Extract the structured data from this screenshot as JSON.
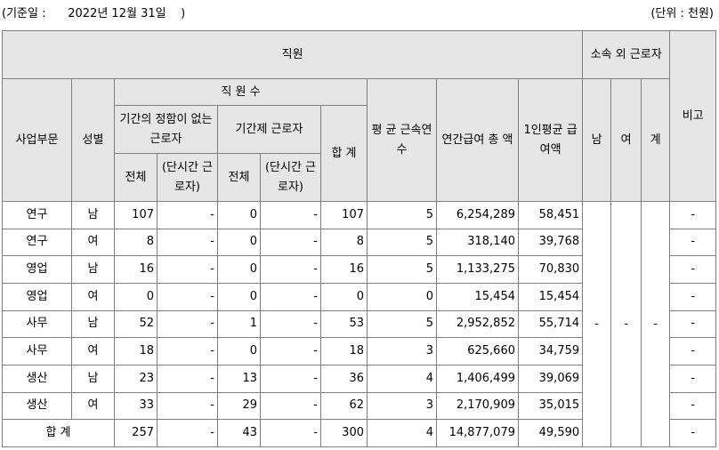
{
  "header": {
    "base_date": "(기준일 :      2022년 12월 31일    )",
    "unit": "(단위 : 천원)"
  },
  "table": {
    "h_employees": "직원",
    "h_outside": "소속 외 근로자",
    "h_remark": "비고",
    "h_division": "사업부문",
    "h_gender": "성별",
    "h_count": "직 원 수",
    "h_regular": "기간의 정함이 없는 근로자",
    "h_contract": "기간제 근로자",
    "h_total_sum": "합 계",
    "h_avg_tenure": "평 균 근속연수",
    "h_annual_pay": "연간급여 총 액",
    "h_per_capita": "1인평균 급여액",
    "h_male": "남",
    "h_female": "여",
    "h_outside_total": "계",
    "h_all1": "전체",
    "h_part1": "(단시간 근로자)",
    "h_all2": "전체",
    "h_part2": "(단시간 근로자)",
    "rows": [
      {
        "division": "연구",
        "gender": "남",
        "regular": "107",
        "regular_part": "-",
        "contract": "0",
        "contract_part": "-",
        "total": "107",
        "tenure": "5",
        "annual": "6,254,289",
        "avg": "58,451",
        "remark": "-"
      },
      {
        "division": "연구",
        "gender": "여",
        "regular": "8",
        "regular_part": "-",
        "contract": "0",
        "contract_part": "-",
        "total": "8",
        "tenure": "5",
        "annual": "318,140",
        "avg": "39,768",
        "remark": "-"
      },
      {
        "division": "영업",
        "gender": "남",
        "regular": "16",
        "regular_part": "-",
        "contract": "0",
        "contract_part": "-",
        "total": "16",
        "tenure": "5",
        "annual": "1,133,275",
        "avg": "70,830",
        "remark": "-"
      },
      {
        "division": "영업",
        "gender": "여",
        "regular": "0",
        "regular_part": "-",
        "contract": "0",
        "contract_part": "-",
        "total": "0",
        "tenure": "0",
        "annual": "15,454",
        "avg": "15,454",
        "remark": "-"
      },
      {
        "division": "사무",
        "gender": "남",
        "regular": "52",
        "regular_part": "-",
        "contract": "1",
        "contract_part": "-",
        "total": "53",
        "tenure": "5",
        "annual": "2,952,852",
        "avg": "55,714",
        "remark": "-"
      },
      {
        "division": "사무",
        "gender": "여",
        "regular": "18",
        "regular_part": "-",
        "contract": "0",
        "contract_part": "-",
        "total": "18",
        "tenure": "3",
        "annual": "625,660",
        "avg": "34,759",
        "remark": "-"
      },
      {
        "division": "생산",
        "gender": "남",
        "regular": "23",
        "regular_part": "-",
        "contract": "13",
        "contract_part": "-",
        "total": "36",
        "tenure": "4",
        "annual": "1,406,499",
        "avg": "39,069",
        "remark": "-"
      },
      {
        "division": "생산",
        "gender": "여",
        "regular": "33",
        "regular_part": "-",
        "contract": "29",
        "contract_part": "-",
        "total": "62",
        "tenure": "3",
        "annual": "2,170,909",
        "avg": "35,015",
        "remark": "-"
      }
    ],
    "outside": {
      "male": "-",
      "female": "-",
      "total": "-"
    },
    "total_row": {
      "label": "합 계",
      "regular": "257",
      "regular_part": "-",
      "contract": "43",
      "contract_part": "-",
      "total": "300",
      "tenure": "4",
      "annual": "14,877,079",
      "avg": "49,590",
      "remark": "-"
    }
  }
}
